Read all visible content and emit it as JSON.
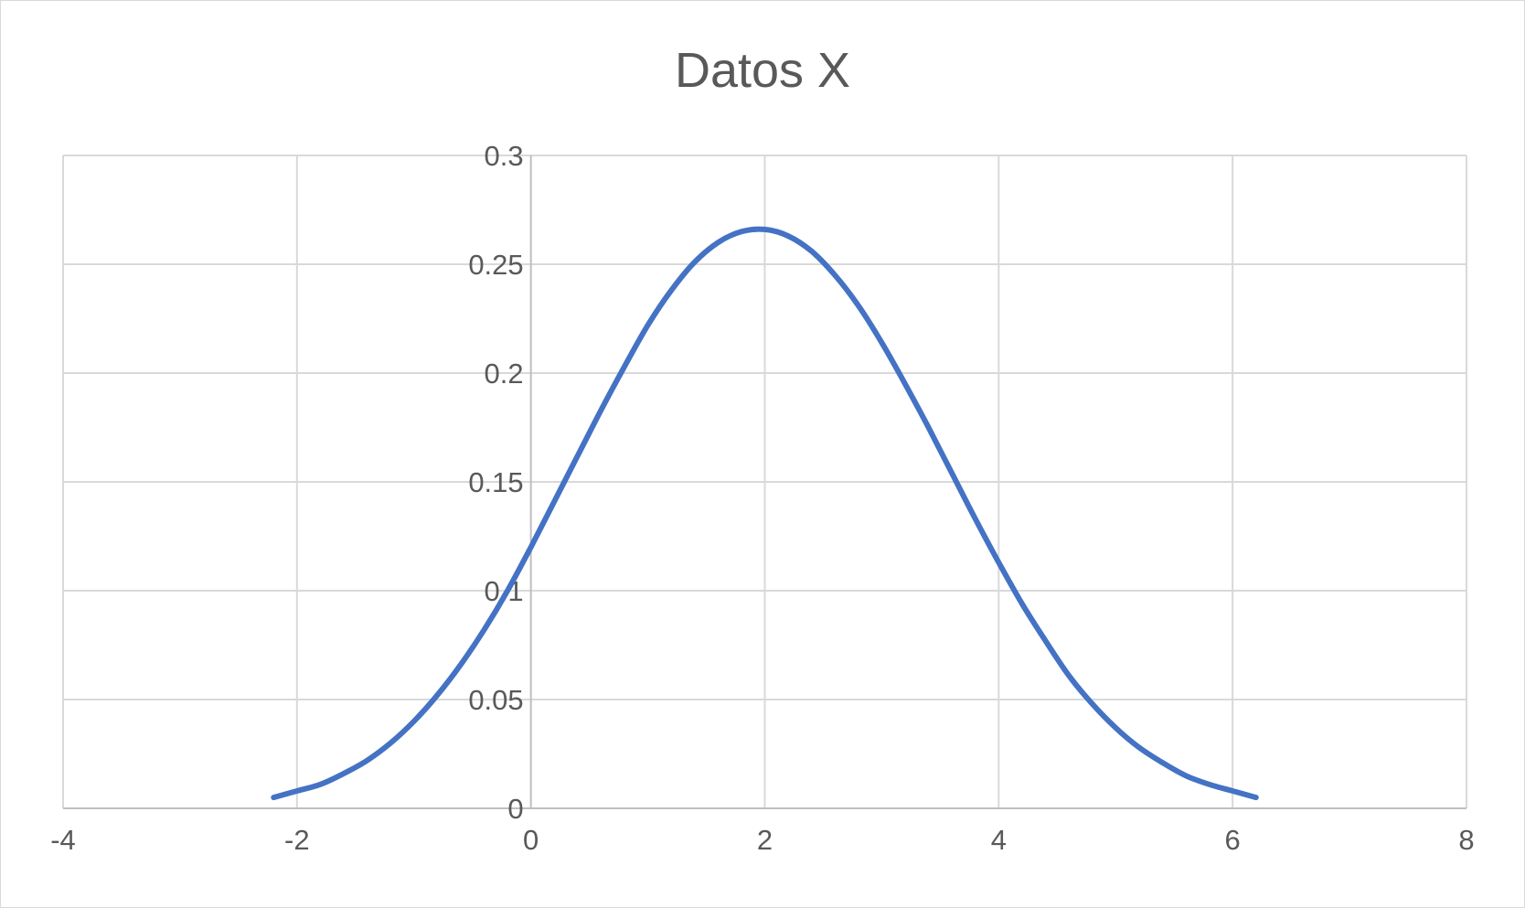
{
  "chart_data": {
    "type": "scatter",
    "title": "Datos X",
    "xlabel": "",
    "ylabel": "",
    "xlim": [
      -4,
      8
    ],
    "ylim": [
      0,
      0.3
    ],
    "x_ticks": [
      -4,
      -2,
      0,
      2,
      4,
      6,
      8
    ],
    "y_ticks": [
      0,
      0.05,
      0.1,
      0.15,
      0.2,
      0.25,
      0.3
    ],
    "grid": true,
    "legend": "none",
    "line_color": "#4472C4",
    "series": [
      {
        "x": [
          -2.2,
          -2.0,
          -1.8,
          -1.6,
          -1.4,
          -1.2,
          -1.0,
          -0.8,
          -0.6,
          -0.4,
          -0.2,
          0.0,
          0.2,
          0.4,
          0.6,
          0.8,
          1.0,
          1.2,
          1.4,
          1.6,
          1.8,
          2.0,
          2.2,
          2.4,
          2.6,
          2.8,
          3.0,
          3.2,
          3.4,
          3.6,
          3.8,
          4.0,
          4.2,
          4.4,
          4.6,
          4.8,
          5.0,
          5.2,
          5.4,
          5.6,
          5.8,
          6.0,
          6.2
        ],
        "y": [
          0.005,
          0.008,
          0.011,
          0.016,
          0.022,
          0.03,
          0.04,
          0.052,
          0.066,
          0.082,
          0.1,
          0.12,
          0.141,
          0.162,
          0.183,
          0.203,
          0.222,
          0.238,
          0.251,
          0.26,
          0.265,
          0.266,
          0.263,
          0.256,
          0.245,
          0.231,
          0.214,
          0.195,
          0.175,
          0.154,
          0.133,
          0.113,
          0.094,
          0.077,
          0.061,
          0.048,
          0.037,
          0.028,
          0.021,
          0.015,
          0.011,
          0.008,
          0.005
        ]
      }
    ]
  }
}
